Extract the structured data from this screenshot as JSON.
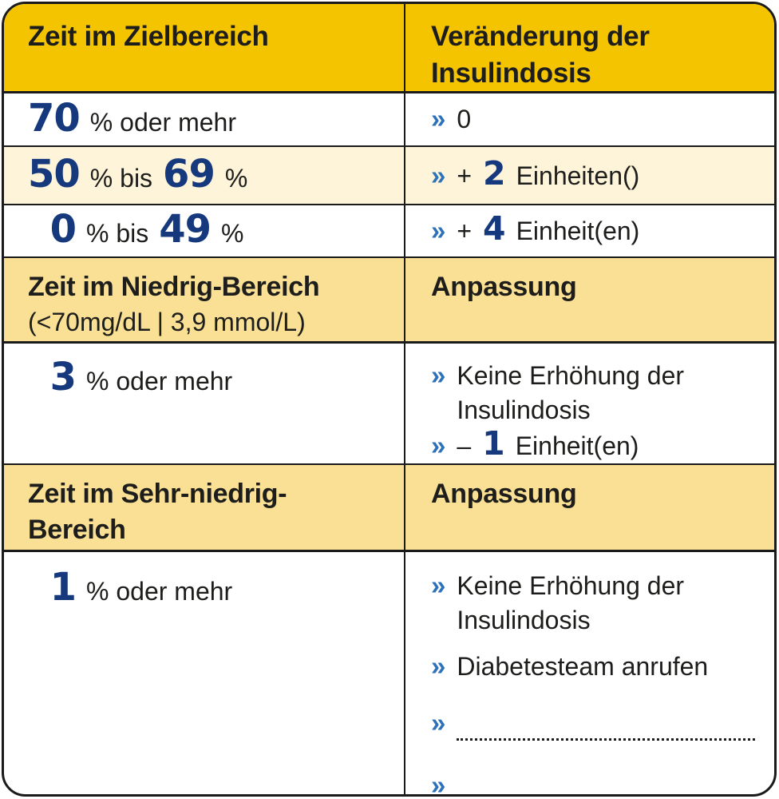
{
  "palette": {
    "gold": "#f5c400",
    "light_gold": "#fae094",
    "cream": "#fdf4d9",
    "navy": "#16387c",
    "blue": "#2d72b8",
    "ink": "#1d1d1b",
    "border": "#1a1a1a"
  },
  "glyphs": {
    "chevron": "»"
  },
  "table": {
    "header": {
      "left": "Zeit im Zielbereich",
      "right_line1": "Veränderung der",
      "right_line2": "Insulindosis"
    },
    "rows": [
      {
        "left": {
          "num": "70",
          "tail": "% oder mehr"
        },
        "right": {
          "items": [
            {
              "text": "0"
            }
          ]
        }
      },
      {
        "left": {
          "num": "50",
          "mid": "% bis",
          "num2": "69",
          "tail": "%"
        },
        "right": {
          "items": [
            {
              "sign": "+",
              "num": "2",
              "text": "Einheiten()"
            }
          ]
        }
      },
      {
        "left": {
          "num": "0",
          "mid": "% bis",
          "num2": "49",
          "tail": "%"
        },
        "right": {
          "items": [
            {
              "sign": "+",
              "num": "4",
              "text": "Einheit(en)"
            }
          ]
        }
      },
      {
        "left": {
          "title": "Zeit im Niedrig-Bereich",
          "subtitle": "(<70mg/dL | 3,9 mmol/L)"
        },
        "right": {
          "title": "Anpassung"
        }
      },
      {
        "left": {
          "num": "3",
          "tail": "% oder mehr"
        },
        "right": {
          "items": [
            {
              "line1": "Keine Erhöhung der",
              "line2": "Insulindosis"
            },
            {
              "sign": "–",
              "num": "1",
              "text": "Einheit(en)"
            }
          ]
        }
      },
      {
        "left": {
          "title_line1": "Zeit im Sehr-niedrig-",
          "title_line2": "Bereich"
        },
        "right": {
          "title": "Anpassung"
        }
      },
      {
        "left": {
          "num": "1",
          "tail": "% oder mehr"
        },
        "right": {
          "items": [
            {
              "line1": "Keine Erhöhung der",
              "line2": "Insulindosis"
            },
            {
              "text": "Diabetesteam anrufen"
            },
            {
              "blank": true
            },
            {
              "blank": true
            }
          ]
        }
      }
    ]
  }
}
